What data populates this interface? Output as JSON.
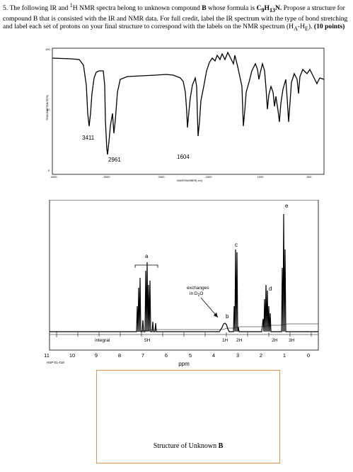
{
  "question": {
    "number": "5.",
    "text_a": "The following IR and ",
    "sup_1": "1",
    "text_b": "H NMR spectra belong to unknown compound ",
    "compound": "B",
    "text_c": " whose formula is ",
    "formula_c": "C",
    "formula_c_sub": "9",
    "formula_h": "H",
    "formula_h_sub": "13",
    "formula_n": "N.",
    "line2": "Propose a structure for compound B that is consisted with the IR and NMR data.  For full credit, label the IR spectrum with the type of bond stretching and label each set of protons on your final structure to correspond with the labels on the NMR spectrum (H",
    "sub_a": "A",
    "dash": "-H",
    "sub_e": "E",
    "close": ").  ",
    "points": "(10 points)"
  },
  "ir": {
    "ylabel": "TRANSMITTANCE[%]",
    "xlabel": "WAVENUMBER[-cm]",
    "yticks": [
      "100",
      "50",
      "0"
    ],
    "xticks": [
      "4000",
      "3000",
      "2000",
      "1500",
      "1000",
      "500"
    ],
    "peak_labels": [
      "3411",
      "2961",
      "1604"
    ]
  },
  "nmr": {
    "signal_labels": [
      "a",
      "b",
      "c",
      "d",
      "e"
    ],
    "annotation_line1": "exchanges",
    "annotation_line2_prefix": "in D",
    "annotation_line2_sub": "2",
    "annotation_line2_suffix": "O",
    "integral_label": "integral",
    "integrals": [
      "5H",
      "1H",
      "2H",
      "2H",
      "3H"
    ],
    "xticks": [
      "11",
      "10",
      "9",
      "8",
      "7",
      "6",
      "5",
      "4",
      "3",
      "2",
      "1",
      "0"
    ],
    "xlabel": "ppm",
    "spectrum_id": "HSP-01-418"
  },
  "answer": {
    "label_prefix": "Structure of Unknown ",
    "label_bold": "B"
  },
  "colors": {
    "box_border": "#e0924a",
    "ink": "#000000"
  }
}
